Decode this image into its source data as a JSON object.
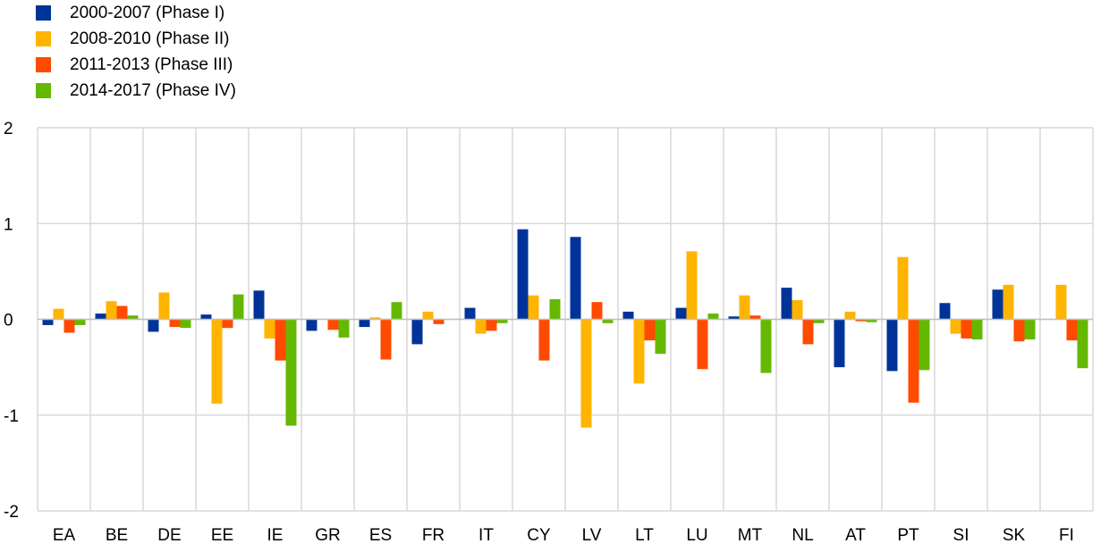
{
  "chart_data": {
    "type": "bar",
    "categories": [
      "EA",
      "BE",
      "DE",
      "EE",
      "IE",
      "GR",
      "ES",
      "FR",
      "IT",
      "CY",
      "LV",
      "LT",
      "LU",
      "MT",
      "NL",
      "AT",
      "PT",
      "SI",
      "SK",
      "FI"
    ],
    "series": [
      {
        "name": "2000-2007 (Phase I)",
        "color": "#003399",
        "values": [
          -0.06,
          0.06,
          -0.13,
          0.05,
          0.3,
          -0.12,
          -0.08,
          -0.26,
          0.12,
          0.94,
          0.86,
          0.08,
          0.12,
          0.03,
          0.33,
          -0.5,
          -0.54,
          0.17,
          0.31,
          0.0
        ]
      },
      {
        "name": "2008-2010 (Phase II)",
        "color": "#FFB400",
        "values": [
          0.11,
          0.19,
          0.28,
          -0.88,
          -0.2,
          0.0,
          0.02,
          0.08,
          -0.15,
          0.25,
          -1.13,
          -0.67,
          0.71,
          0.25,
          0.2,
          0.08,
          0.65,
          -0.15,
          0.36,
          0.36
        ]
      },
      {
        "name": "2011-2013 (Phase III)",
        "color": "#FF4B00",
        "values": [
          -0.14,
          0.14,
          -0.08,
          -0.09,
          -0.43,
          -0.11,
          -0.42,
          -0.05,
          -0.12,
          -0.43,
          0.18,
          -0.22,
          -0.52,
          0.04,
          -0.26,
          -0.02,
          -0.87,
          -0.2,
          -0.23,
          -0.22
        ]
      },
      {
        "name": "2014-2017 (Phase IV)",
        "color": "#65B800",
        "values": [
          -0.06,
          0.04,
          -0.09,
          0.26,
          -1.11,
          -0.19,
          0.18,
          0.0,
          -0.04,
          0.21,
          -0.04,
          -0.36,
          0.06,
          -0.56,
          -0.04,
          -0.03,
          -0.53,
          -0.21,
          -0.21,
          -0.51
        ]
      }
    ],
    "yticks": [
      "-2",
      "-1",
      "0",
      "1",
      "2"
    ],
    "ylim": [
      -2,
      2
    ],
    "grid": true,
    "legend_position": "top-left"
  }
}
